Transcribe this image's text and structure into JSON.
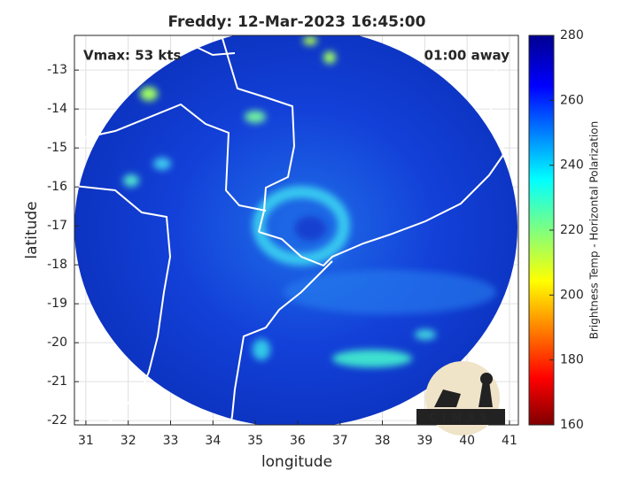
{
  "map": {
    "title": "Freddy: 12-Mar-2023 16:45:00",
    "annotations": [
      "Vmax: 53 kts",
      "01:00 away"
    ],
    "xlabel": "longitude",
    "ylabel": "latitude",
    "xlim": [
      30.73,
      41.21
    ],
    "ylim": [
      -22.11,
      -12.11
    ],
    "xticks": [
      31,
      32,
      33,
      34,
      35,
      36,
      37,
      38,
      39,
      40,
      41
    ],
    "yticks": [
      -22,
      -21,
      -20,
      -19,
      -18,
      -17,
      -16,
      -15,
      -14,
      -13
    ],
    "grid": true,
    "colorbar": {
      "label": "Brightness Temp - Horizontal Polarization",
      "lim": [
        160,
        280
      ],
      "ticks": [
        160,
        180,
        200,
        220,
        240,
        260,
        280
      ]
    },
    "logo": "CIMSS"
  }
}
